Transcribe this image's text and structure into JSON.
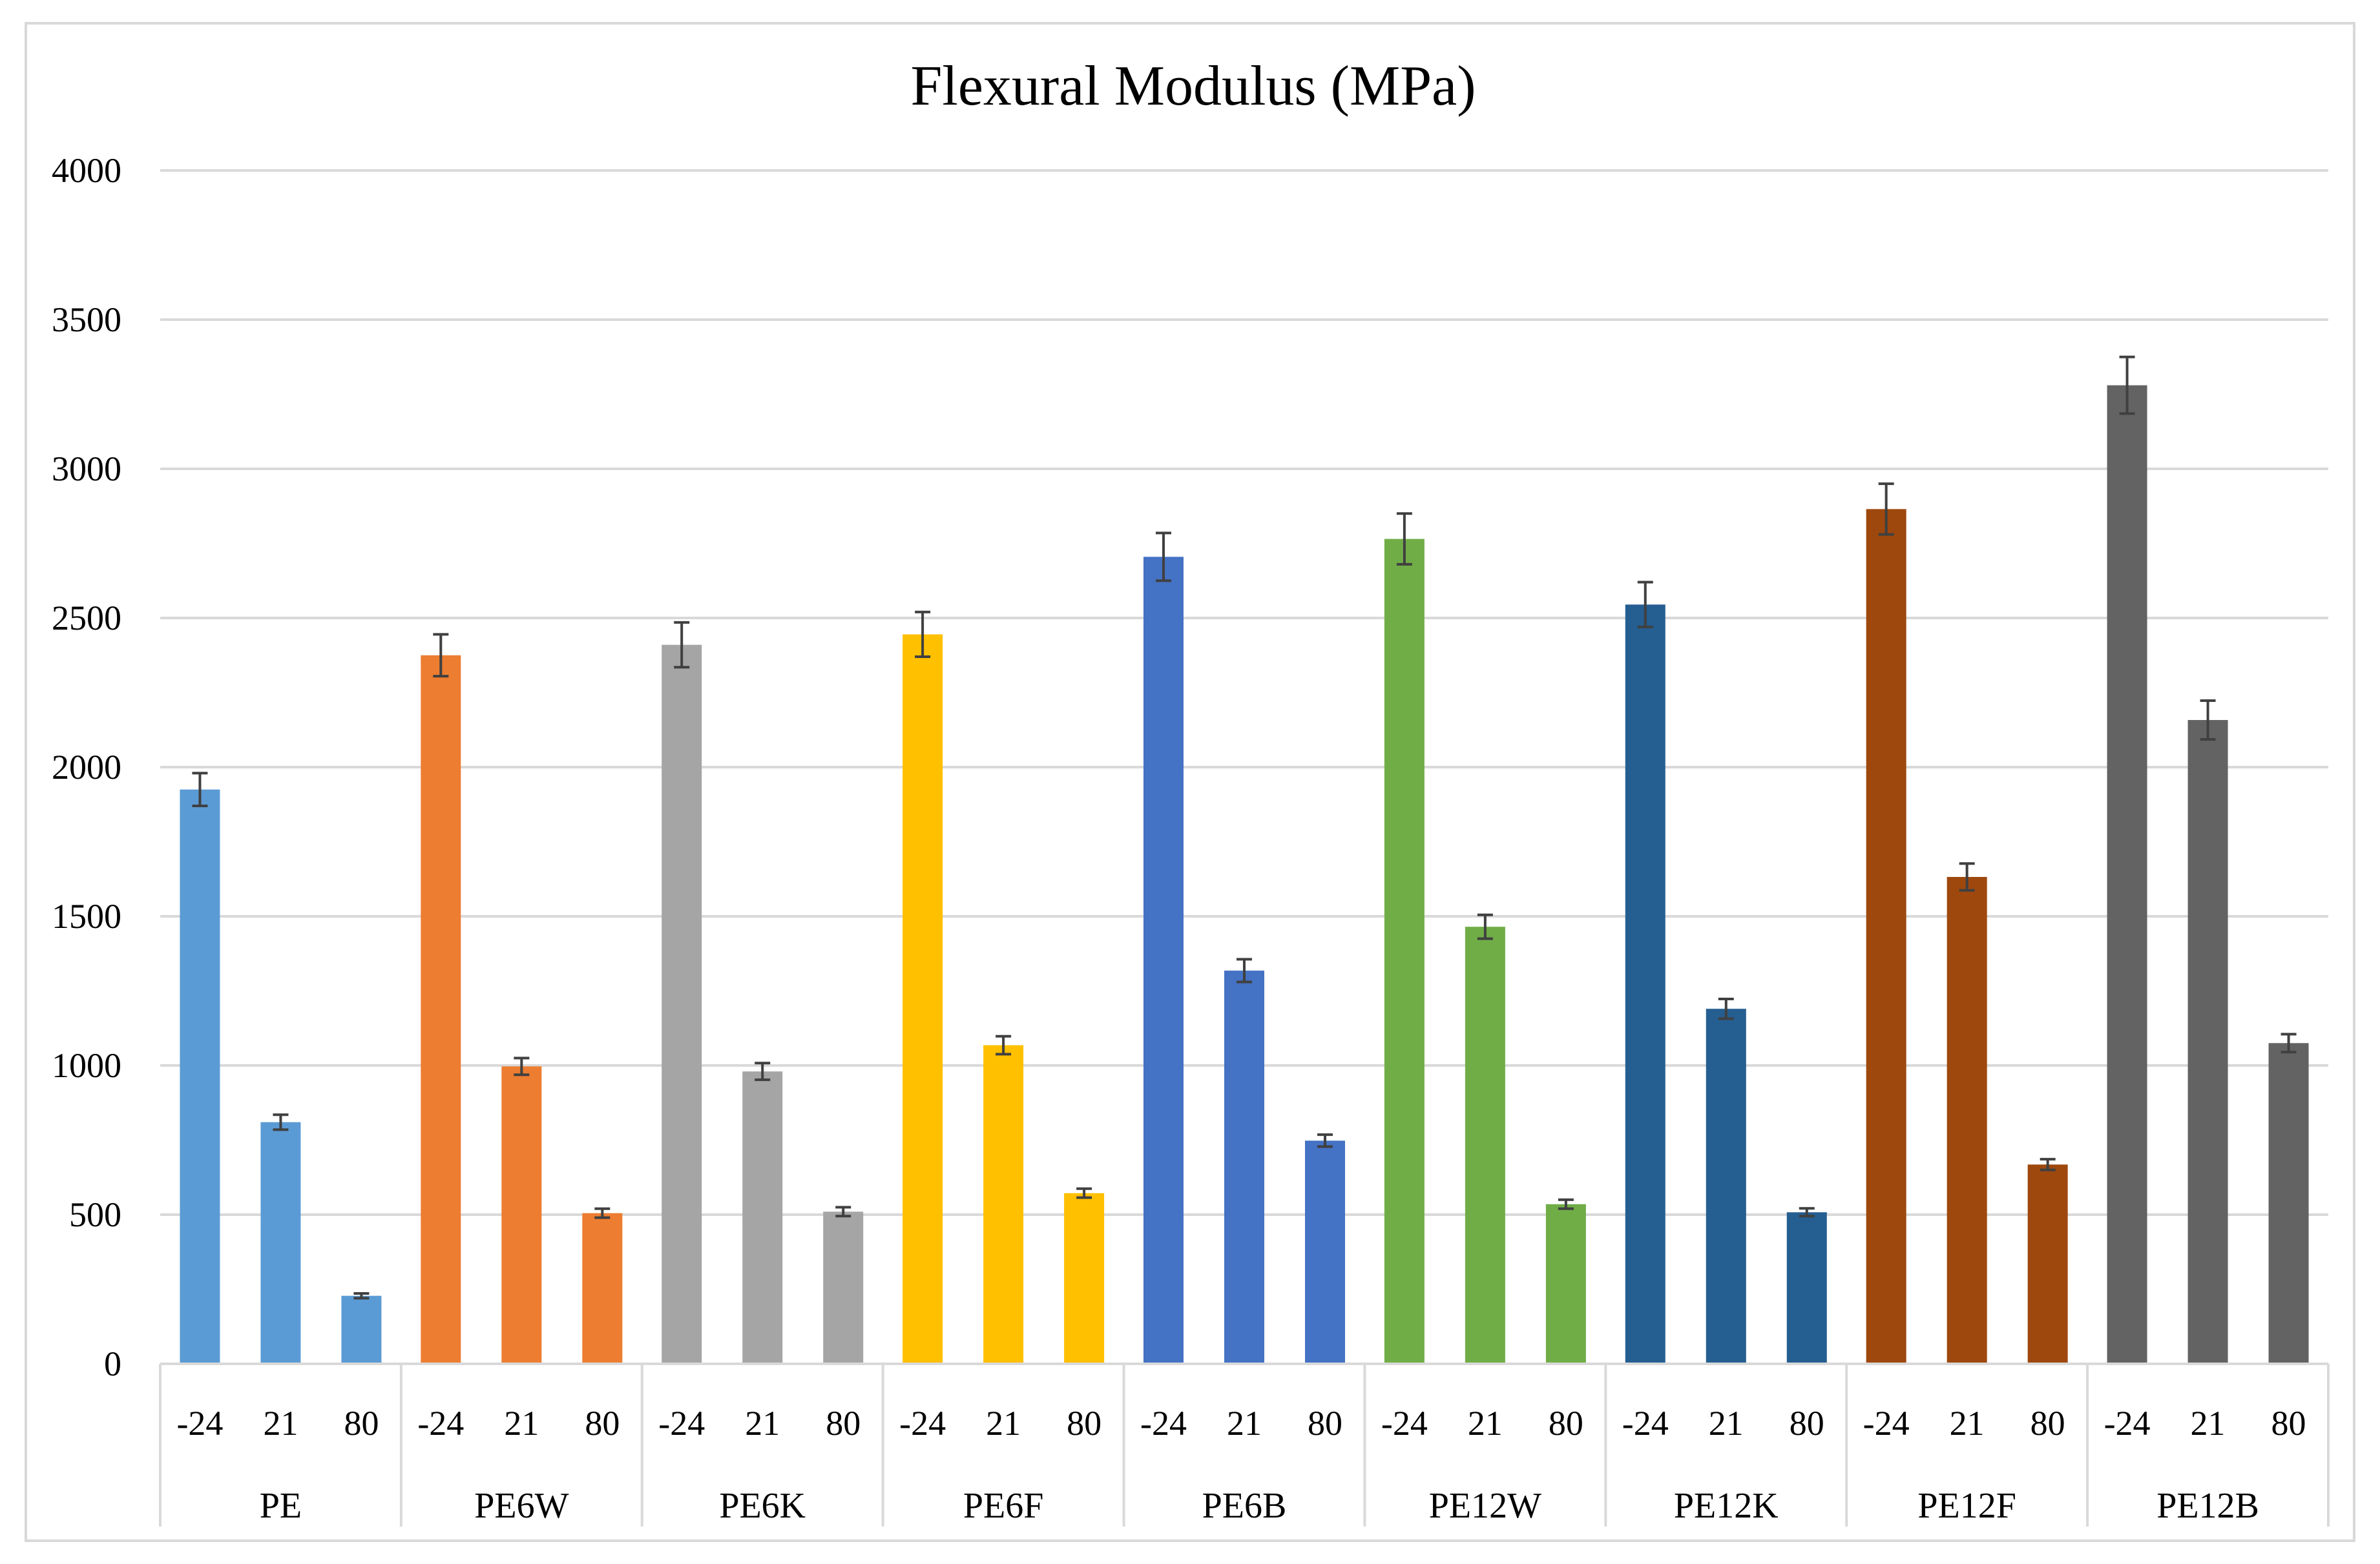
{
  "chart_data": {
    "type": "bar",
    "title": "Flexural Modulus (MPa)",
    "xlabel": "",
    "ylabel": "",
    "ylim": [
      0,
      4000
    ],
    "yticks": [
      0,
      500,
      1000,
      1500,
      2000,
      2500,
      3000,
      3500,
      4000
    ],
    "grid": true,
    "legend": "none",
    "groups": [
      {
        "name": "PE",
        "color": "#5b9bd5",
        "temperatures": [
          "-24",
          "21",
          "80"
        ],
        "values": [
          1925,
          810,
          228
        ],
        "errors": [
          55,
          25,
          8
        ]
      },
      {
        "name": "PE6W",
        "color": "#ed7d31",
        "temperatures": [
          "-24",
          "21",
          "80"
        ],
        "values": [
          2375,
          997,
          505
        ],
        "errors": [
          70,
          28,
          15
        ]
      },
      {
        "name": "PE6K",
        "color": "#a5a5a5",
        "temperatures": [
          "-24",
          "21",
          "80"
        ],
        "values": [
          2410,
          980,
          510
        ],
        "errors": [
          75,
          28,
          15
        ]
      },
      {
        "name": "PE6F",
        "color": "#ffc000",
        "temperatures": [
          "-24",
          "21",
          "80"
        ],
        "values": [
          2445,
          1068,
          572
        ],
        "errors": [
          75,
          30,
          15
        ]
      },
      {
        "name": "PE6B",
        "color": "#4472c4",
        "temperatures": [
          "-24",
          "21",
          "80"
        ],
        "values": [
          2705,
          1318,
          748
        ],
        "errors": [
          80,
          38,
          20
        ]
      },
      {
        "name": "PE12W",
        "color": "#70ad47",
        "temperatures": [
          "-24",
          "21",
          "80"
        ],
        "values": [
          2765,
          1465,
          535
        ],
        "errors": [
          85,
          40,
          15
        ]
      },
      {
        "name": "PE12K",
        "color": "#255e91",
        "temperatures": [
          "-24",
          "21",
          "80"
        ],
        "values": [
          2545,
          1190,
          508
        ],
        "errors": [
          75,
          33,
          13
        ]
      },
      {
        "name": "PE12F",
        "color": "#9e480e",
        "temperatures": [
          "-24",
          "21",
          "80"
        ],
        "values": [
          2865,
          1632,
          668
        ],
        "errors": [
          85,
          45,
          18
        ]
      },
      {
        "name": "PE12B",
        "color": "#636363",
        "temperatures": [
          "-24",
          "21",
          "80"
        ],
        "values": [
          3280,
          2158,
          1075
        ],
        "errors": [
          95,
          65,
          30
        ]
      }
    ]
  }
}
